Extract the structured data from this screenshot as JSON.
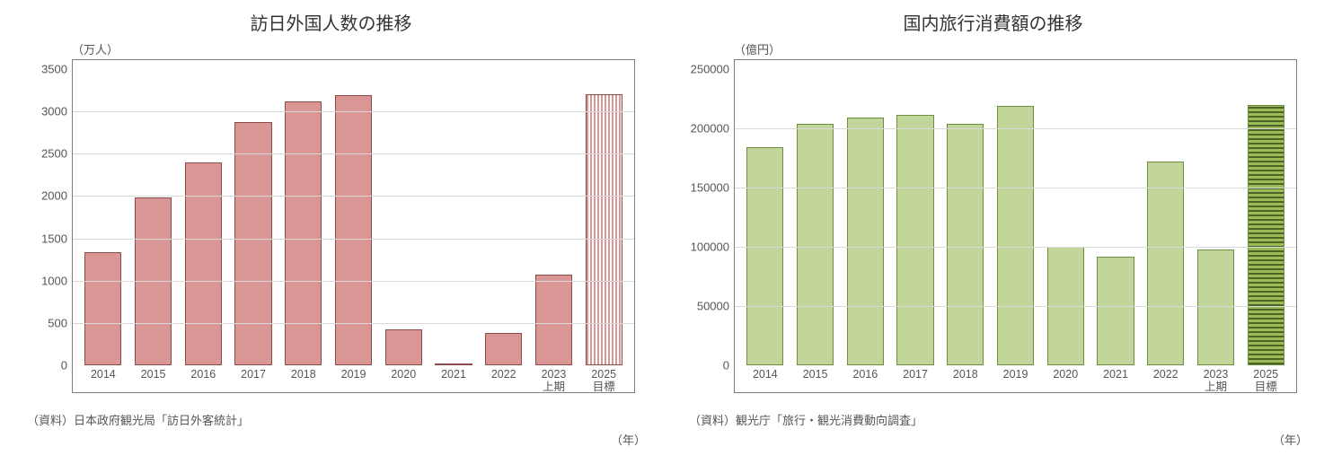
{
  "left": {
    "title": "訪日外国人数の推移",
    "unit": "（万人）",
    "type": "bar",
    "y": {
      "min": 0,
      "max": 3500,
      "step": 500
    },
    "categories": [
      "2014",
      "2015",
      "2016",
      "2017",
      "2018",
      "2019",
      "2020",
      "2021",
      "2022",
      "2023\n上期",
      "2025\n目標"
    ],
    "values": [
      1340,
      1980,
      2400,
      2870,
      3120,
      3190,
      420,
      25,
      380,
      1070,
      3200
    ],
    "bar_fill": "#d99694",
    "bar_border": "#8b4b4a",
    "grid_color": "#d9d9d9",
    "frame_color": "#7f7f7f",
    "background": "#ffffff",
    "special_last": {
      "pattern": "vertical-stripe",
      "stripe_color": "#d99694",
      "bg": "#ffffff"
    },
    "source": "（資料）日本政府観光局「訪日外客統計」",
    "x_axis_unit": "（年）"
  },
  "right": {
    "title": "国内旅行消費額の推移",
    "unit": "（億円）",
    "type": "bar",
    "y": {
      "min": 0,
      "max": 250000,
      "step": 50000
    },
    "categories": [
      "2014",
      "2015",
      "2016",
      "2017",
      "2018",
      "2019",
      "2020",
      "2021",
      "2022",
      "2023\n上期",
      "2025\n目標"
    ],
    "values": [
      184000,
      204000,
      209000,
      211000,
      204000,
      219000,
      100000,
      92000,
      172000,
      98000,
      220000
    ],
    "bar_fill": "#c2d69b",
    "bar_border": "#6b8e3a",
    "grid_color": "#d9d9d9",
    "frame_color": "#7f7f7f",
    "background": "#ffffff",
    "special_last": {
      "pattern": "horizontal-hatch",
      "stripe_color": "#4f6228",
      "bg": "#9bbb59"
    },
    "source": "（資料）観光庁「旅行・観光消費動向調査」",
    "x_axis_unit": "（年）"
  }
}
